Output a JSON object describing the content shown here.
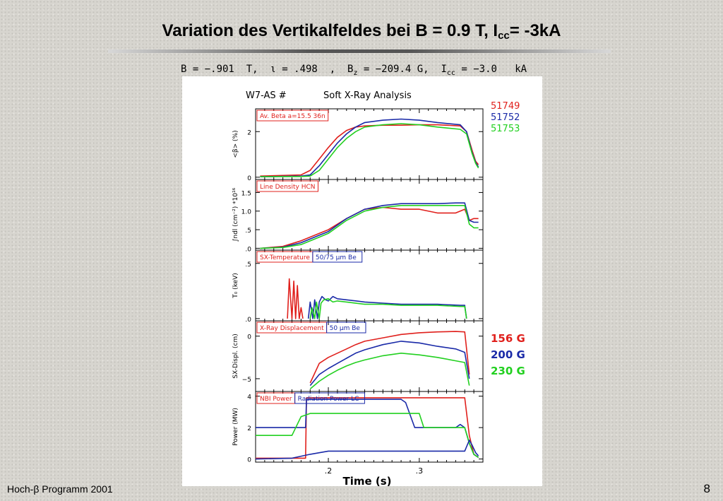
{
  "slide": {
    "title_main": "Variation des Vertikalfeldes bei B = 0.9 T, I",
    "title_sub": "cc",
    "title_end": "= -3kA",
    "params_1": "B = −.901  T,  ι = .498  ,  B",
    "params_sub_z": "z",
    "params_2": " = −209.4 G,  I",
    "params_sub_cc": "cc",
    "params_3": " = −3.0   kA",
    "footer": "Hoch-β Programm 2001",
    "page_number": "8"
  },
  "colors": {
    "red": "#e0201c",
    "blue": "#1a2aa8",
    "green": "#22d020"
  },
  "chart_data": {
    "type": "line",
    "figure_title": "W7-AS #",
    "figure_subtitle": "Soft X-Ray Analysis",
    "shots": [
      "51749",
      "51752",
      "51753"
    ],
    "shot_colors": [
      "#e0201c",
      "#1a2aa8",
      "#22d020"
    ],
    "field_labels": [
      "156 G",
      "200 G",
      "230 G"
    ],
    "xlabel": "Time (s)",
    "xlim": [
      0.12,
      0.37
    ],
    "xticks": [
      0.2,
      0.3
    ],
    "xtick_labels": [
      ".2",
      ".3"
    ],
    "panels": [
      {
        "label": "Av. Beta  a=15.5  36n",
        "ylabel": "<β> (%)",
        "ylim": [
          -0.1,
          3.0
        ],
        "yticks": [
          0,
          2
        ],
        "ytick_labels": [
          "0",
          "2"
        ],
        "series": [
          {
            "x": [
              0.125,
              0.17,
              0.18,
              0.19,
              0.2,
              0.21,
              0.22,
              0.23,
              0.24,
              0.26,
              0.28,
              0.3,
              0.32,
              0.345,
              0.352,
              0.358,
              0.362,
              0.365
            ],
            "y": [
              0.05,
              0.1,
              0.3,
              0.8,
              1.3,
              1.75,
              2.05,
              2.2,
              2.25,
              2.28,
              2.28,
              2.3,
              2.3,
              2.25,
              2.0,
              1.2,
              0.7,
              0.55
            ]
          },
          {
            "x": [
              0.125,
              0.17,
              0.18,
              0.19,
              0.2,
              0.21,
              0.22,
              0.23,
              0.24,
              0.26,
              0.28,
              0.3,
              0.32,
              0.345,
              0.352,
              0.358,
              0.362,
              0.365
            ],
            "y": [
              0.02,
              0.05,
              0.1,
              0.5,
              1.0,
              1.5,
              1.9,
              2.2,
              2.4,
              2.5,
              2.55,
              2.5,
              2.4,
              2.3,
              2.0,
              1.1,
              0.65,
              0.45
            ]
          },
          {
            "x": [
              0.125,
              0.17,
              0.18,
              0.19,
              0.2,
              0.21,
              0.22,
              0.23,
              0.24,
              0.26,
              0.28,
              0.3,
              0.32,
              0.345,
              0.352,
              0.358,
              0.362,
              0.365
            ],
            "y": [
              0.02,
              0.03,
              0.05,
              0.3,
              0.8,
              1.3,
              1.7,
              2.0,
              2.2,
              2.3,
              2.35,
              2.3,
              2.2,
              2.1,
              1.9,
              1.05,
              0.6,
              0.4
            ]
          }
        ]
      },
      {
        "label": "Line Density HCN",
        "ylabel": "∫ndl (cm⁻²) *10¹⁶",
        "ylim": [
          -0.05,
          1.85
        ],
        "yticks": [
          0,
          0.5,
          1.0,
          1.5
        ],
        "ytick_labels": [
          ".0",
          ".5",
          "1.0",
          "1.5"
        ],
        "series": [
          {
            "x": [
              0.125,
              0.15,
              0.17,
              0.19,
              0.2,
              0.22,
              0.24,
              0.26,
              0.28,
              0.3,
              0.32,
              0.34,
              0.35,
              0.355,
              0.36,
              0.365
            ],
            "y": [
              0.0,
              0.05,
              0.2,
              0.4,
              0.5,
              0.8,
              1.05,
              1.1,
              1.05,
              1.05,
              0.95,
              0.95,
              1.05,
              0.75,
              0.8,
              0.8
            ]
          },
          {
            "x": [
              0.125,
              0.15,
              0.17,
              0.19,
              0.2,
              0.22,
              0.24,
              0.26,
              0.28,
              0.3,
              0.32,
              0.34,
              0.35,
              0.355,
              0.36,
              0.365
            ],
            "y": [
              0.0,
              0.03,
              0.15,
              0.35,
              0.45,
              0.8,
              1.05,
              1.15,
              1.2,
              1.2,
              1.2,
              1.22,
              1.22,
              0.75,
              0.7,
              0.7
            ]
          },
          {
            "x": [
              0.125,
              0.15,
              0.17,
              0.19,
              0.2,
              0.22,
              0.24,
              0.26,
              0.28,
              0.3,
              0.32,
              0.34,
              0.35,
              0.355,
              0.36,
              0.365
            ],
            "y": [
              0.0,
              0.02,
              0.1,
              0.3,
              0.4,
              0.75,
              1.0,
              1.1,
              1.15,
              1.15,
              1.15,
              1.15,
              1.15,
              0.65,
              0.55,
              0.55
            ]
          }
        ]
      },
      {
        "label": "SX-Temperature",
        "label2": "50/75  µm Be",
        "ylabel": "T₀ (keV)",
        "ylim": [
          -0.02,
          0.62
        ],
        "yticks": [
          0,
          0.5
        ],
        "ytick_labels": [
          ".0",
          ".5"
        ],
        "series": [
          {
            "x": [
              0.155,
              0.157,
              0.16,
              0.162,
              0.164,
              0.166,
              0.168,
              0.17,
              0.172
            ],
            "y": [
              0.0,
              0.36,
              0.0,
              0.34,
              0.0,
              0.3,
              0.0,
              0.1,
              0.0
            ]
          },
          {
            "x": [
              0.178,
              0.18,
              0.183,
              0.185,
              0.188,
              0.19,
              0.193,
              0.197,
              0.2,
              0.205,
              0.21,
              0.22,
              0.24,
              0.26,
              0.28,
              0.3,
              0.32,
              0.345,
              0.35,
              0.352
            ],
            "y": [
              0.0,
              0.15,
              0.0,
              0.17,
              0.0,
              0.15,
              0.2,
              0.17,
              0.16,
              0.2,
              0.18,
              0.17,
              0.15,
              0.14,
              0.13,
              0.13,
              0.13,
              0.12,
              0.12,
              0.0
            ]
          },
          {
            "x": [
              0.18,
              0.182,
              0.185,
              0.187,
              0.19,
              0.192,
              0.195,
              0.2,
              0.205,
              0.21,
              0.22,
              0.24,
              0.26,
              0.28,
              0.3,
              0.32,
              0.345,
              0.35,
              0.352
            ],
            "y": [
              0.0,
              0.1,
              0.0,
              0.15,
              0.0,
              0.14,
              0.17,
              0.18,
              0.15,
              0.16,
              0.15,
              0.13,
              0.13,
              0.12,
              0.12,
              0.12,
              0.11,
              0.11,
              0.0
            ]
          }
        ]
      },
      {
        "label": "X-Ray Displacement",
        "label2": "50  µm Be",
        "ylabel": "SX-Displ. (cm)",
        "ylim": [
          -6.5,
          1.8
        ],
        "yticks": [
          -5,
          0
        ],
        "ytick_labels": [
          "−5",
          "0"
        ],
        "series": [
          {
            "x": [
              0.18,
              0.19,
              0.2,
              0.21,
              0.22,
              0.23,
              0.24,
              0.26,
              0.28,
              0.3,
              0.32,
              0.34,
              0.35,
              0.355
            ],
            "y": [
              -5.5,
              -3.2,
              -2.5,
              -2.0,
              -1.5,
              -1.0,
              -0.6,
              -0.2,
              0.2,
              0.4,
              0.5,
              0.55,
              0.5,
              -4.5
            ]
          },
          {
            "x": [
              0.18,
              0.19,
              0.2,
              0.21,
              0.22,
              0.23,
              0.24,
              0.26,
              0.28,
              0.3,
              0.32,
              0.34,
              0.35,
              0.355
            ],
            "y": [
              -5.8,
              -4.5,
              -3.8,
              -3.2,
              -2.6,
              -2.0,
              -1.6,
              -1.0,
              -0.6,
              -0.8,
              -1.2,
              -1.5,
              -1.9,
              -5.0
            ]
          },
          {
            "x": [
              0.18,
              0.19,
              0.2,
              0.21,
              0.22,
              0.23,
              0.24,
              0.26,
              0.28,
              0.3,
              0.32,
              0.34,
              0.35,
              0.355
            ],
            "y": [
              -6.2,
              -5.3,
              -4.6,
              -4.0,
              -3.5,
              -3.1,
              -2.8,
              -2.3,
              -2.0,
              -2.2,
              -2.5,
              -2.9,
              -3.1,
              -5.8
            ]
          }
        ]
      },
      {
        "label": "NBI Power",
        "label2": "Radiation Power LC",
        "ylabel": "Power (MW)",
        "ylim": [
          -0.2,
          4.3
        ],
        "yticks": [
          0,
          2,
          4
        ],
        "ytick_labels": [
          "0",
          "2",
          "4"
        ],
        "series": [
          {
            "x": [
              0.12,
              0.175,
              0.176,
              0.29,
              0.295,
              0.345,
              0.35,
              0.355,
              0.36,
              0.365
            ],
            "y": [
              0.05,
              0.05,
              3.9,
              3.9,
              3.9,
              3.9,
              3.9,
              1.5,
              0.3,
              0.1
            ]
          },
          {
            "x": [
              0.12,
              0.175,
              0.176,
              0.28,
              0.285,
              0.295,
              0.3,
              0.34,
              0.345,
              0.35,
              0.355,
              0.36,
              0.365
            ],
            "y": [
              2.0,
              2.0,
              3.8,
              3.8,
              3.6,
              2.0,
              2.0,
              2.0,
              2.2,
              2.0,
              1.0,
              0.3,
              0.1
            ]
          },
          {
            "x": [
              0.12,
              0.16,
              0.17,
              0.18,
              0.3,
              0.305,
              0.345,
              0.35,
              0.355,
              0.36,
              0.365
            ],
            "y": [
              1.5,
              1.5,
              2.7,
              2.9,
              2.9,
              2.0,
              2.0,
              2.0,
              1.0,
              0.3,
              0.1
            ]
          },
          {
            "x": [
              0.12,
              0.16,
              0.18,
              0.2,
              0.24,
              0.28,
              0.3,
              0.34,
              0.35,
              0.355,
              0.358,
              0.362,
              0.365
            ],
            "y": [
              0.0,
              0.05,
              0.3,
              0.5,
              0.5,
              0.5,
              0.5,
              0.5,
              0.5,
              1.2,
              0.9,
              0.4,
              0.2
            ]
          }
        ],
        "series_colors": [
          "#e0201c",
          "#1a2aa8",
          "#22d020",
          "#1a2aa8"
        ]
      }
    ]
  }
}
